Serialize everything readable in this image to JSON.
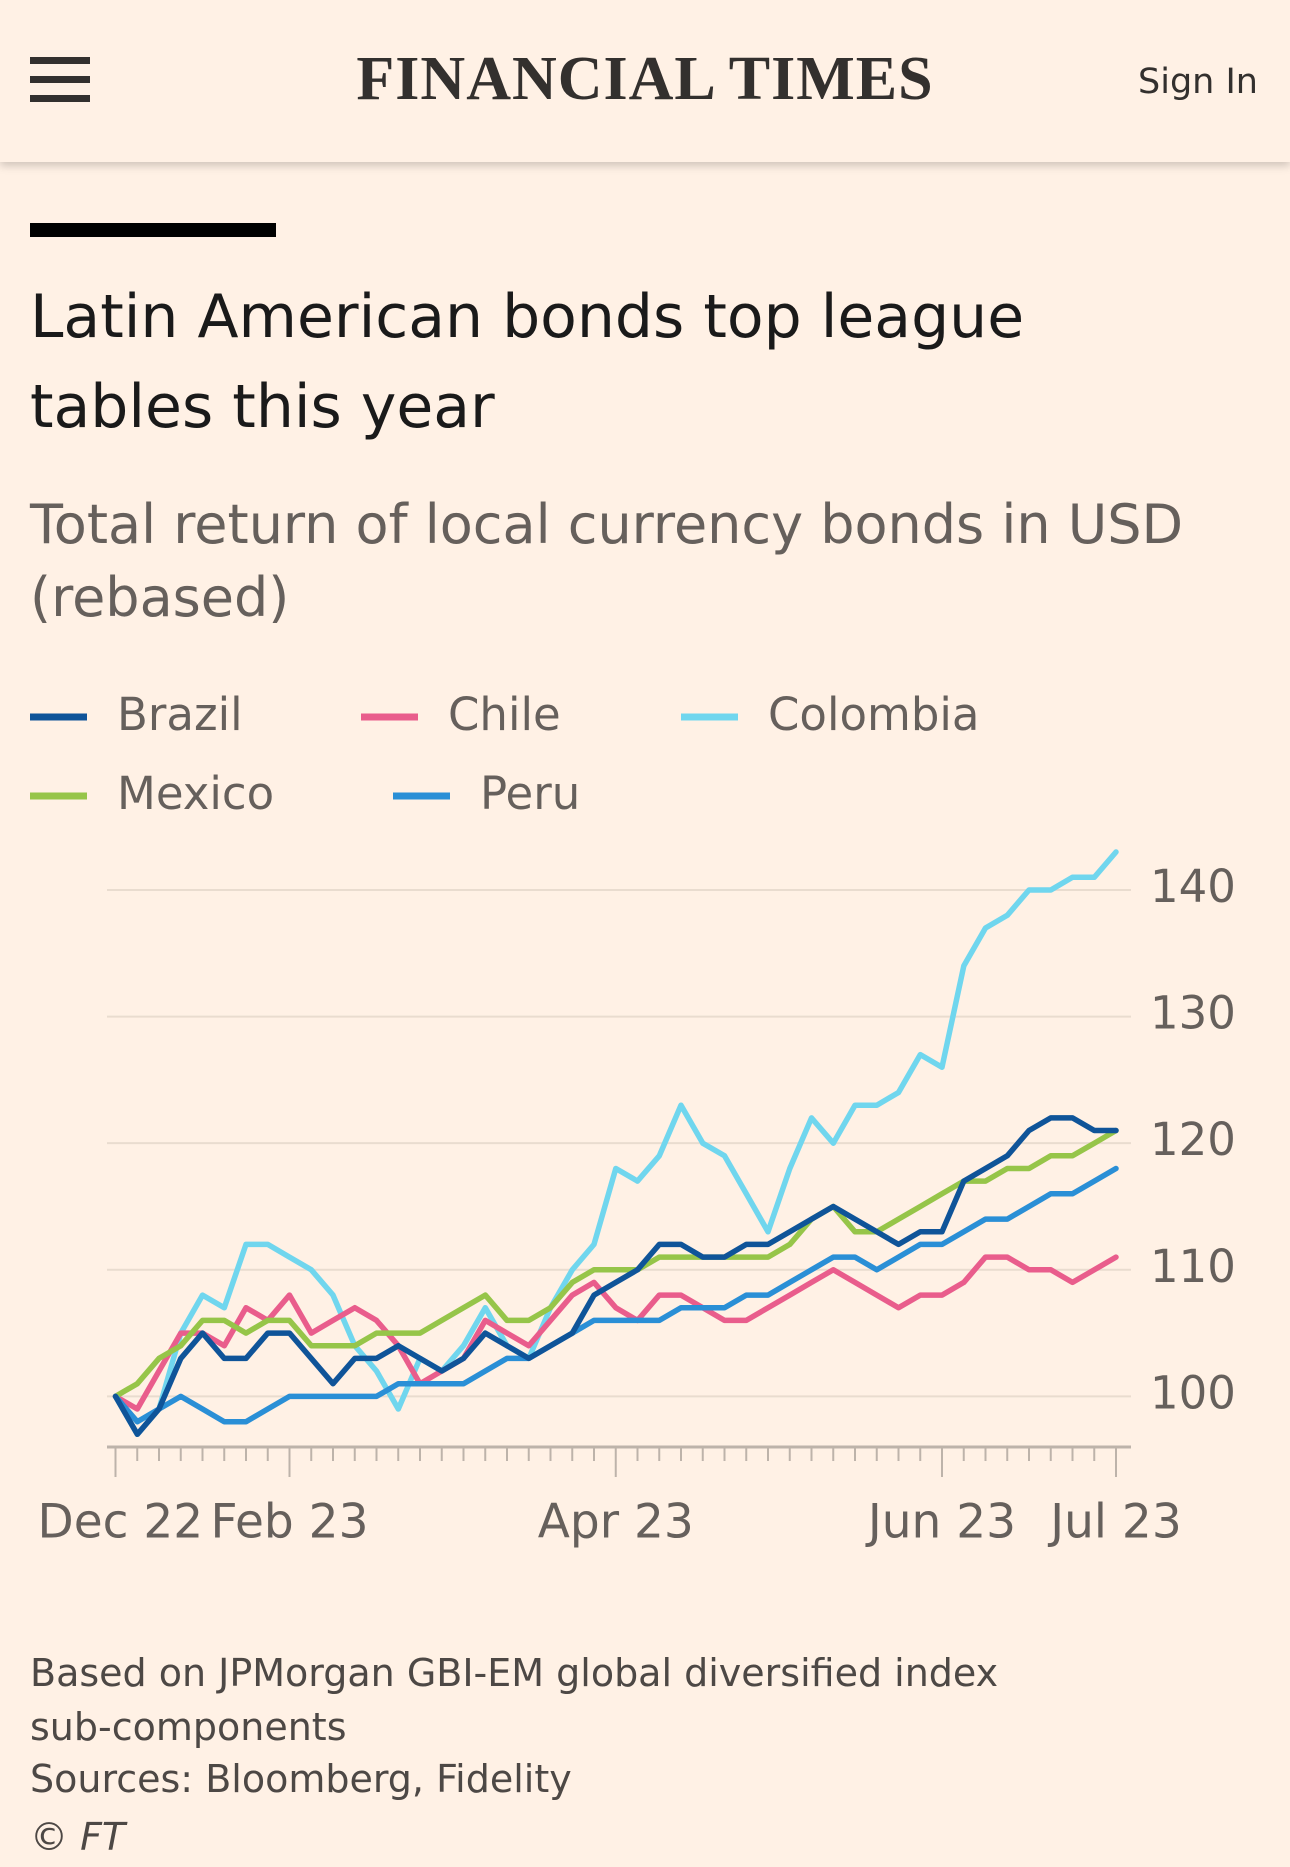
{
  "header": {
    "title": "FINANCIAL TIMES",
    "sign_in": "Sign In"
  },
  "chart_data": {
    "type": "line",
    "title": "Latin American bonds top league tables this year",
    "subtitle": "Total return of local currency bonds in USD (rebased)",
    "x": [
      "Dec 22",
      null,
      null,
      null,
      null,
      null,
      null,
      null,
      "Feb 23",
      null,
      null,
      null,
      null,
      null,
      null,
      null,
      null,
      null,
      null,
      null,
      null,
      null,
      null,
      "Apr 23",
      null,
      null,
      null,
      null,
      null,
      null,
      null,
      null,
      null,
      null,
      null,
      null,
      null,
      null,
      "Jun 23",
      null,
      null,
      null,
      null,
      null,
      null,
      null,
      "Jul 23"
    ],
    "series": [
      {
        "name": "Brazil",
        "color": "#0f5499",
        "values": [
          100,
          97,
          99,
          103,
          105,
          103,
          103,
          105,
          105,
          103,
          101,
          103,
          103,
          104,
          103,
          102,
          103,
          105,
          104,
          103,
          104,
          105,
          108,
          109,
          110,
          112,
          112,
          111,
          111,
          112,
          112,
          113,
          114,
          115,
          114,
          113,
          112,
          113,
          113,
          117,
          118,
          119,
          121,
          122,
          122,
          121,
          121
        ]
      },
      {
        "name": "Chile",
        "color": "#e95d8c",
        "values": [
          100,
          99,
          102,
          105,
          105,
          104,
          107,
          106,
          108,
          105,
          106,
          107,
          106,
          104,
          101,
          102,
          103,
          106,
          105,
          104,
          106,
          108,
          109,
          107,
          106,
          108,
          108,
          107,
          106,
          106,
          107,
          108,
          109,
          110,
          109,
          108,
          107,
          108,
          108,
          109,
          111,
          111,
          110,
          110,
          109,
          110,
          111
        ]
      },
      {
        "name": "Colombia",
        "color": "#70d6ee",
        "values": [
          100,
          97,
          99,
          105,
          108,
          107,
          112,
          112,
          111,
          110,
          108,
          104,
          102,
          99,
          103,
          102,
          104,
          107,
          104,
          103,
          107,
          110,
          112,
          118,
          117,
          119,
          123,
          120,
          119,
          116,
          113,
          118,
          122,
          120,
          123,
          123,
          124,
          127,
          126,
          134,
          137,
          138,
          140,
          140,
          141,
          141,
          143
        ]
      },
      {
        "name": "Mexico",
        "color": "#96c549",
        "values": [
          100,
          101,
          103,
          104,
          106,
          106,
          105,
          106,
          106,
          104,
          104,
          104,
          105,
          105,
          105,
          106,
          107,
          108,
          106,
          106,
          107,
          109,
          110,
          110,
          110,
          111,
          111,
          111,
          111,
          111,
          111,
          112,
          114,
          115,
          113,
          113,
          114,
          115,
          116,
          117,
          117,
          118,
          118,
          119,
          119,
          120,
          121
        ]
      },
      {
        "name": "Peru",
        "color": "#2a8fd6",
        "values": [
          100,
          98,
          99,
          100,
          99,
          98,
          98,
          99,
          100,
          100,
          100,
          100,
          100,
          101,
          101,
          101,
          101,
          102,
          103,
          103,
          104,
          105,
          106,
          106,
          106,
          106,
          107,
          107,
          107,
          108,
          108,
          109,
          110,
          111,
          111,
          110,
          111,
          112,
          112,
          113,
          114,
          114,
          115,
          116,
          116,
          117,
          118
        ]
      }
    ],
    "ylim": [
      96,
      143
    ],
    "yticks": [
      100,
      110,
      120,
      130,
      140
    ],
    "grid": true,
    "note": "Based on JPMorgan GBI-EM global diversified index sub-components",
    "source": "Sources: Bloomberg, Fidelity",
    "credit": "© FT"
  }
}
